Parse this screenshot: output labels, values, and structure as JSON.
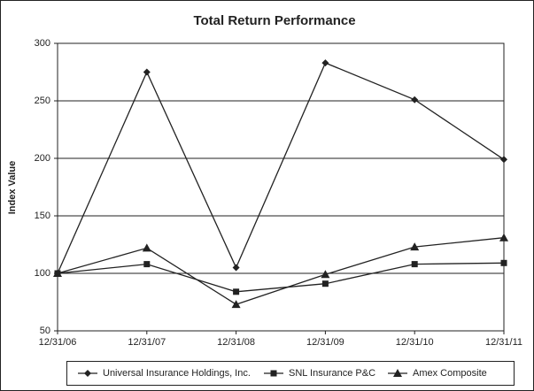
{
  "chart_data": {
    "type": "line",
    "title": "Total Return Performance",
    "y_label": "Index Value",
    "categories": [
      "12/31/06",
      "12/31/07",
      "12/31/08",
      "12/31/09",
      "12/31/10",
      "12/31/11"
    ],
    "series": [
      {
        "name": "Universal Insurance Holdings, Inc.",
        "color": "#222222",
        "marker": "diamond",
        "values": [
          100,
          275,
          105,
          283,
          251,
          199
        ]
      },
      {
        "name": "SNL Insurance P&C",
        "color": "#222222",
        "marker": "square",
        "values": [
          100,
          108,
          84,
          91,
          108,
          109
        ]
      },
      {
        "name": "Amex Composite",
        "color": "#222222",
        "marker": "triangle",
        "values": [
          100,
          122,
          73,
          99,
          123,
          131
        ]
      }
    ],
    "ylim": [
      50,
      300
    ],
    "yticks": [
      50,
      100,
      150,
      200,
      250,
      300
    ],
    "grid": true,
    "legend": "bottom"
  }
}
